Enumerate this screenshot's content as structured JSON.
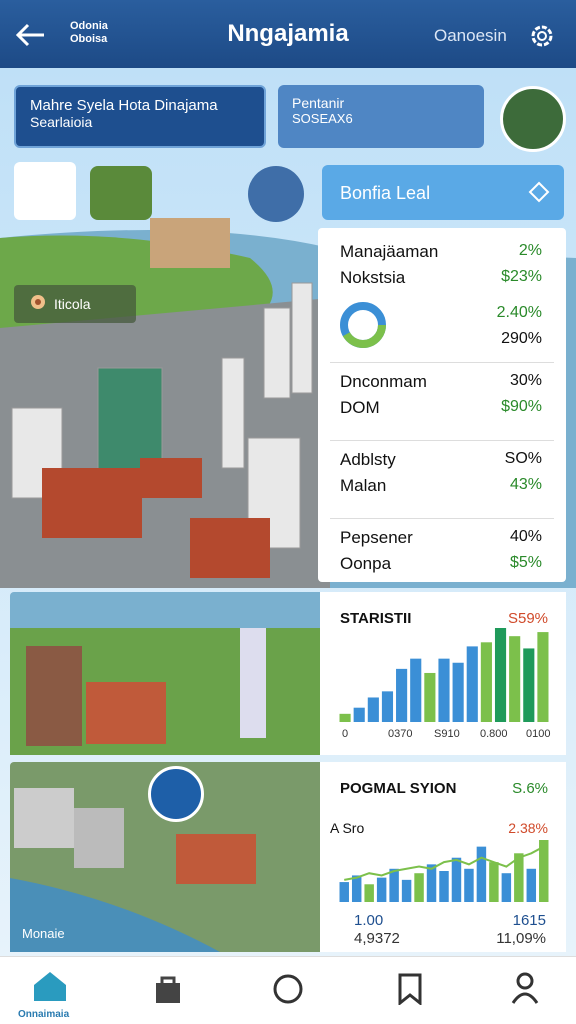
{
  "header": {
    "brand": [
      "Odonia",
      "Oboisa"
    ],
    "title": "Nngajamia",
    "action": "Oanoesin"
  },
  "cards": [
    {
      "title": "Mahre Syela Hota Dinajama",
      "subtitle": "Searlaioia"
    },
    {
      "title": "Pentanir",
      "subtitle": "SOSEAX6"
    }
  ],
  "button": "Bonfia Leal",
  "map_label": "Iticola",
  "stats": [
    {
      "lines": [
        {
          "label": "Manajäaman",
          "value": "2%"
        },
        {
          "label": "Nokstsia",
          "value": "$23%"
        }
      ],
      "side_values": [
        "2.40%",
        "290%"
      ]
    },
    {
      "lines": [
        {
          "label": "Dnconmam",
          "value": "30%"
        },
        {
          "label": "DOM",
          "value": "$90%"
        }
      ]
    },
    {
      "lines": [
        {
          "label": "Adblsty",
          "value": "SO%"
        },
        {
          "label": "Malan",
          "value": "43%"
        }
      ]
    },
    {
      "lines": [
        {
          "label": "Pepsener",
          "value": "40%"
        },
        {
          "label": "Oonpa",
          "value": "$5%"
        }
      ]
    }
  ],
  "charts": [
    {
      "title": "STARISTII",
      "change": "S59%",
      "x_labels": [
        "0",
        "0370",
        "S910",
        "0.800",
        "0100"
      ],
      "values": [
        8,
        14,
        24,
        30,
        52,
        62,
        48,
        62,
        58,
        74,
        78,
        92,
        84,
        72,
        88
      ],
      "colors": [
        "#7cc04b",
        "#3b8fd6",
        "#3b8fd6",
        "#3b8fd6",
        "#3b8fd6",
        "#3b8fd6",
        "#7cc04b",
        "#3b8fd6",
        "#3b8fd6",
        "#3b8fd6",
        "#7cc04b",
        "#1f9a5a",
        "#7cc04b",
        "#1f9a5a",
        "#7cc04b"
      ]
    },
    {
      "title": "POGMAL SYION",
      "change": "S.6%",
      "note": "A Sro",
      "note_value": "2.38%",
      "values": [
        18,
        24,
        16,
        22,
        30,
        20,
        26,
        34,
        28,
        40,
        30,
        50,
        36,
        26,
        44,
        30,
        56
      ],
      "colors": [
        "#3b8fd6",
        "#3b8fd6",
        "#7cc04b",
        "#3b8fd6",
        "#3b8fd6",
        "#3b8fd6",
        "#7cc04b",
        "#3b8fd6",
        "#3b8fd6",
        "#3b8fd6",
        "#3b8fd6",
        "#3b8fd6",
        "#7cc04b",
        "#3b8fd6",
        "#7cc04b",
        "#3b8fd6",
        "#7cc04b"
      ],
      "line": [
        20,
        22,
        26,
        24,
        28,
        30,
        32,
        30,
        36,
        38,
        34,
        40,
        36,
        32,
        40,
        44,
        50
      ],
      "footer": [
        [
          "1.00",
          "4,9372"
        ],
        [
          "1615",
          "11,09%"
        ]
      ]
    }
  ],
  "photo_label": "Monaie",
  "nav_home": "Onnaimaia"
}
